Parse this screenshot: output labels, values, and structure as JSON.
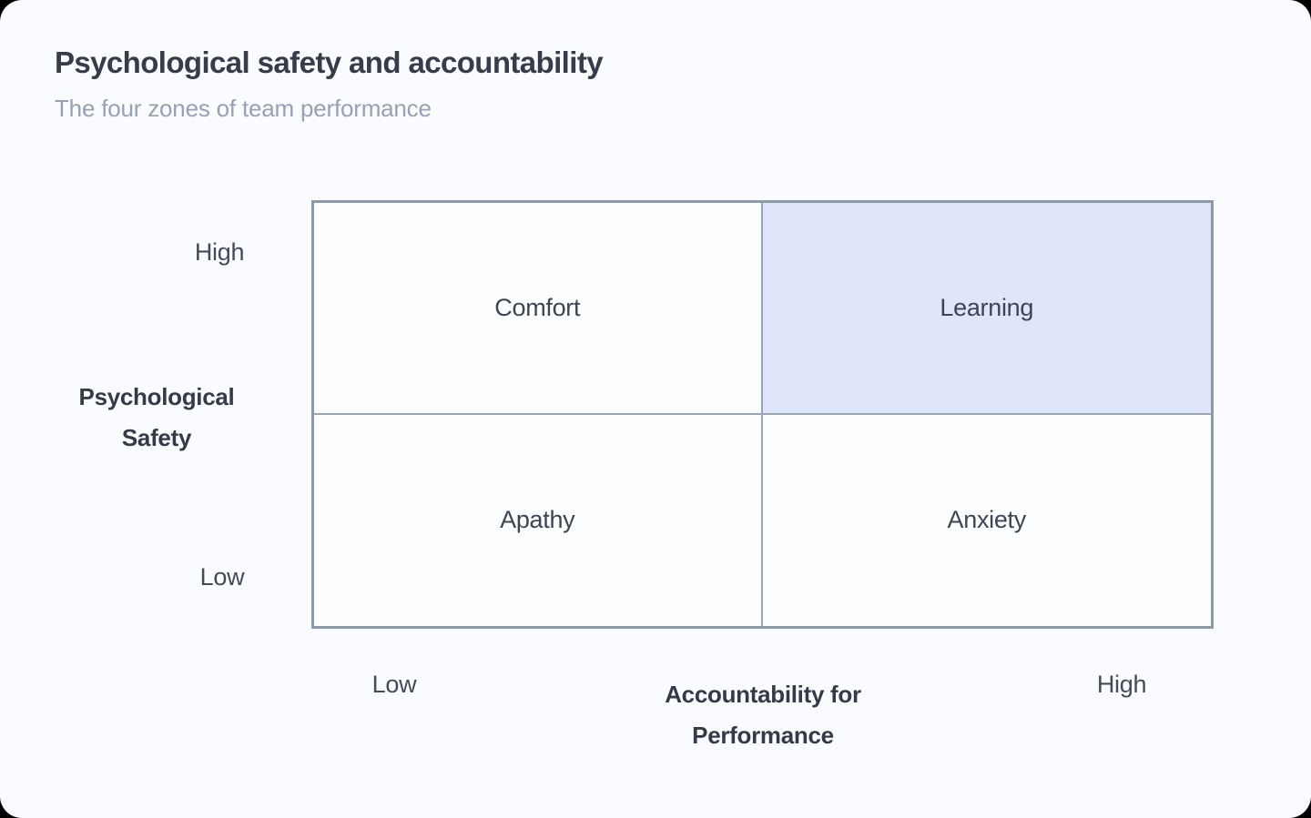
{
  "header": {
    "title": "Psychological safety and accountability",
    "subtitle": "The four zones of team performance"
  },
  "matrix": {
    "quadrants": [
      {
        "id": "comfort",
        "label": "Comfort",
        "psychological_safety": "high",
        "accountability": "low",
        "highlighted": false
      },
      {
        "id": "learning",
        "label": "Learning",
        "psychological_safety": "high",
        "accountability": "high",
        "highlighted": true
      },
      {
        "id": "apathy",
        "label": "Apathy",
        "psychological_safety": "low",
        "accountability": "low",
        "highlighted": false
      },
      {
        "id": "anxiety",
        "label": "Anxiety",
        "psychological_safety": "low",
        "accountability": "high",
        "highlighted": false
      }
    ],
    "y_axis": {
      "title_line1": "Psychological",
      "title_line2": "Safety",
      "high_label": "High",
      "low_label": "Low"
    },
    "x_axis": {
      "title_line1": "Accountability for",
      "title_line2": "Performance",
      "low_label": "Low",
      "high_label": "High"
    }
  },
  "colors": {
    "card_background": "#fafbfe",
    "quadrant_background": "#fcfdff",
    "quadrant_highlight": "#dfe5fa",
    "grid_outer_border": "#8d99a9",
    "grid_inner_border": "#9aa5b4",
    "title_text": "#363d49",
    "subtitle_text": "#97a1b2",
    "label_text": "#3d4452"
  }
}
